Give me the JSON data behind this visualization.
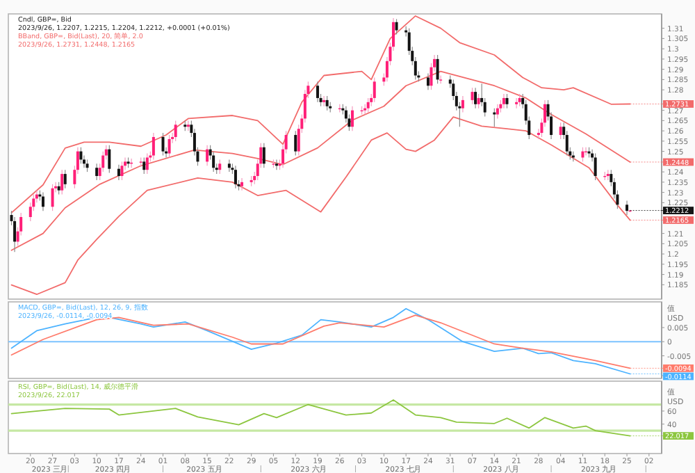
{
  "chart_data": [
    {
      "type": "candlestick",
      "title": "Cndl, GBP=, Bid",
      "subtitle": "2023/9/26, 1.2207, 1.2215, 1.2204, 1.2212, +0.0001 (+0.01%)",
      "legend_title": "BBand, GBP=, Bid(Last), 20, 简单, 2.0",
      "annotations": [
        "2023/9/26, 1.2731, 1.2448, 1.2165"
      ],
      "value_labels": [
        null,
        null,
        null,
        null,
        null,
        null,
        null,
        null,
        null,
        null,
        null,
        null,
        null,
        null,
        null,
        null,
        null,
        null,
        null,
        null,
        null,
        null,
        null,
        null,
        null,
        null,
        null,
        null,
        null,
        null,
        null,
        null,
        null,
        null,
        null,
        null,
        null,
        null,
        null,
        null,
        null,
        null,
        null,
        null,
        null,
        null,
        null,
        null,
        null,
        null,
        null,
        null,
        null,
        null,
        null,
        null,
        null,
        null,
        null,
        null,
        null,
        null,
        null,
        null,
        null,
        null,
        null,
        null,
        null,
        null,
        null,
        null,
        null,
        null,
        null,
        null,
        null,
        null,
        null,
        null,
        null,
        null,
        null,
        null,
        null,
        null,
        null,
        null,
        null,
        null,
        null,
        null,
        null,
        null,
        null,
        null,
        null,
        null,
        null,
        null,
        null,
        null,
        null,
        null,
        null,
        null,
        null,
        null,
        null,
        null,
        null,
        null,
        null,
        null,
        null,
        null,
        null,
        null,
        null,
        null,
        null,
        null,
        null,
        null,
        null,
        null,
        null,
        null,
        null,
        null,
        null,
        null,
        null,
        null,
        null,
        null,
        null,
        null,
        null,
        null,
        "1.2212"
      ],
      "x": [
        "2023-03-14",
        "2023-03-15",
        "2023-03-16",
        "2023-03-17",
        "2023-03-20",
        "2023-03-21",
        "2023-03-22",
        "2023-03-23",
        "2023-03-24",
        "2023-03-27",
        "2023-03-28",
        "2023-03-29",
        "2023-03-30",
        "2023-03-31",
        "2023-04-03",
        "2023-04-04",
        "2023-04-05",
        "2023-04-06",
        "2023-04-07",
        "2023-04-10",
        "2023-04-11",
        "2023-04-12",
        "2023-04-13",
        "2023-04-14",
        "2023-04-17",
        "2023-04-18",
        "2023-04-19",
        "2023-04-20",
        "2023-04-21",
        "2023-04-24",
        "2023-04-25",
        "2023-04-26",
        "2023-04-27",
        "2023-04-28",
        "2023-05-01",
        "2023-05-02",
        "2023-05-03",
        "2023-05-04",
        "2023-05-05",
        "2023-05-08",
        "2023-05-09",
        "2023-05-10",
        "2023-05-11",
        "2023-05-12",
        "2023-05-15",
        "2023-05-16",
        "2023-05-17",
        "2023-05-18",
        "2023-05-19",
        "2023-05-22",
        "2023-05-23",
        "2023-05-24",
        "2023-05-25",
        "2023-05-26",
        "2023-05-29",
        "2023-05-30",
        "2023-05-31",
        "2023-06-01",
        "2023-06-02",
        "2023-06-05",
        "2023-06-06",
        "2023-06-07",
        "2023-06-08",
        "2023-06-09",
        "2023-06-12",
        "2023-06-13",
        "2023-06-14",
        "2023-06-15",
        "2023-06-16",
        "2023-06-19",
        "2023-06-20",
        "2023-06-21",
        "2023-06-22",
        "2023-06-23",
        "2023-06-26",
        "2023-06-27",
        "2023-06-28",
        "2023-06-29",
        "2023-06-30",
        "2023-07-03",
        "2023-07-04",
        "2023-07-05",
        "2023-07-06",
        "2023-07-07",
        "2023-07-10",
        "2023-07-11",
        "2023-07-12",
        "2023-07-13",
        "2023-07-14",
        "2023-07-17",
        "2023-07-18",
        "2023-07-19",
        "2023-07-20",
        "2023-07-21",
        "2023-07-24",
        "2023-07-25",
        "2023-07-26",
        "2023-07-27",
        "2023-07-28",
        "2023-07-31",
        "2023-08-01",
        "2023-08-02",
        "2023-08-03",
        "2023-08-04",
        "2023-08-07",
        "2023-08-08",
        "2023-08-09",
        "2023-08-10",
        "2023-08-11",
        "2023-08-14",
        "2023-08-15",
        "2023-08-16",
        "2023-08-17",
        "2023-08-18",
        "2023-08-21",
        "2023-08-22",
        "2023-08-23",
        "2023-08-24",
        "2023-08-25",
        "2023-08-28",
        "2023-08-29",
        "2023-08-30",
        "2023-08-31",
        "2023-09-01",
        "2023-09-04",
        "2023-09-05",
        "2023-09-06",
        "2023-09-07",
        "2023-09-08",
        "2023-09-11",
        "2023-09-12",
        "2023-09-13",
        "2023-09-14",
        "2023-09-15",
        "2023-09-18",
        "2023-09-19",
        "2023-09-20",
        "2023-09-21",
        "2023-09-22",
        "2023-09-25",
        "2023-09-26"
      ],
      "ohlc": [
        [
          1.219,
          1.221,
          1.214,
          1.216
        ],
        [
          1.216,
          1.218,
          1.201,
          1.206
        ],
        [
          1.206,
          1.213,
          1.204,
          1.211
        ],
        [
          1.211,
          1.22,
          1.209,
          1.218
        ],
        [
          1.218,
          1.225,
          1.216,
          1.223
        ],
        [
          1.223,
          1.229,
          1.221,
          1.227
        ],
        [
          1.227,
          1.231,
          1.225,
          1.229
        ],
        [
          1.229,
          1.231,
          1.226,
          1.228
        ],
        [
          1.228,
          1.23,
          1.221,
          1.223
        ],
        [
          1.223,
          1.234,
          1.221,
          1.232
        ],
        [
          1.232,
          1.235,
          1.23,
          1.233
        ],
        [
          1.233,
          1.235,
          1.229,
          1.231
        ],
        [
          1.231,
          1.241,
          1.229,
          1.239
        ],
        [
          1.239,
          1.241,
          1.232,
          1.234
        ],
        [
          1.234,
          1.243,
          1.232,
          1.241
        ],
        [
          1.241,
          1.252,
          1.239,
          1.25
        ],
        [
          1.25,
          1.252,
          1.244,
          1.246
        ],
        [
          1.246,
          1.248,
          1.242,
          1.244
        ],
        [
          1.244,
          1.246,
          1.24,
          1.242
        ],
        [
          1.242,
          1.244,
          1.236,
          1.238
        ],
        [
          1.238,
          1.244,
          1.236,
          1.242
        ],
        [
          1.242,
          1.25,
          1.24,
          1.248
        ],
        [
          1.248,
          1.253,
          1.246,
          1.251
        ],
        [
          1.251,
          1.253,
          1.2395,
          1.2415
        ],
        [
          1.2415,
          1.2435,
          1.236,
          1.238
        ],
        [
          1.238,
          1.245,
          1.236,
          1.243
        ],
        [
          1.243,
          1.247,
          1.241,
          1.245
        ],
        [
          1.245,
          1.247,
          1.242,
          1.244
        ],
        [
          1.244,
          1.2465,
          1.242,
          1.2445
        ],
        [
          1.2445,
          1.247,
          1.2425,
          1.245
        ],
        [
          1.245,
          1.247,
          1.239,
          1.241
        ],
        [
          1.241,
          1.249,
          1.239,
          1.247
        ],
        [
          1.247,
          1.25,
          1.245,
          1.248
        ],
        [
          1.248,
          1.259,
          1.246,
          1.257
        ],
        [
          1.257,
          1.259,
          1.248,
          1.25
        ],
        [
          1.25,
          1.252,
          1.247,
          1.249
        ],
        [
          1.249,
          1.258,
          1.247,
          1.256
        ],
        [
          1.256,
          1.259,
          1.254,
          1.257
        ],
        [
          1.257,
          1.265,
          1.255,
          1.263
        ],
        [
          1.263,
          1.265,
          1.26,
          1.262
        ],
        [
          1.262,
          1.265,
          1.26,
          1.263
        ],
        [
          1.263,
          1.265,
          1.257,
          1.259
        ],
        [
          1.259,
          1.261,
          1.248,
          1.25
        ],
        [
          1.25,
          1.252,
          1.243,
          1.245
        ],
        [
          1.245,
          1.253,
          1.243,
          1.251
        ],
        [
          1.251,
          1.253,
          1.246,
          1.248
        ],
        [
          1.248,
          1.25,
          1.24,
          1.242
        ],
        [
          1.242,
          1.244,
          1.239,
          1.241
        ],
        [
          1.241,
          1.246,
          1.239,
          1.244
        ],
        [
          1.244,
          1.246,
          1.24,
          1.242
        ],
        [
          1.242,
          1.244,
          1.239,
          1.241
        ],
        [
          1.241,
          1.243,
          1.232,
          1.234
        ],
        [
          1.234,
          1.236,
          1.231,
          1.233
        ],
        [
          1.233,
          1.237,
          1.231,
          1.235
        ],
        [
          1.235,
          1.238,
          1.233,
          1.236
        ],
        [
          1.236,
          1.24,
          1.234,
          1.238
        ],
        [
          1.238,
          1.246,
          1.236,
          1.244
        ],
        [
          1.244,
          1.254,
          1.242,
          1.252
        ],
        [
          1.252,
          1.254,
          1.242,
          1.244
        ],
        [
          1.244,
          1.246,
          1.242,
          1.244
        ],
        [
          1.244,
          1.246,
          1.241,
          1.243
        ],
        [
          1.243,
          1.246,
          1.241,
          1.244
        ],
        [
          1.244,
          1.253,
          1.242,
          1.251
        ],
        [
          1.251,
          1.26,
          1.249,
          1.258
        ],
        [
          1.258,
          1.26,
          1.248,
          1.25
        ],
        [
          1.25,
          1.263,
          1.248,
          1.261
        ],
        [
          1.261,
          1.268,
          1.259,
          1.266
        ],
        [
          1.266,
          1.28,
          1.264,
          1.278
        ],
        [
          1.278,
          1.284,
          1.276,
          1.282
        ],
        [
          1.282,
          1.284,
          1.274,
          1.276
        ],
        [
          1.276,
          1.278,
          1.272,
          1.274
        ],
        [
          1.274,
          1.277,
          1.272,
          1.275
        ],
        [
          1.275,
          1.277,
          1.27,
          1.272
        ],
        [
          1.272,
          1.274,
          1.269,
          1.271
        ],
        [
          1.271,
          1.273,
          1.269,
          1.271
        ],
        [
          1.271,
          1.273,
          1.268,
          1.27
        ],
        [
          1.27,
          1.272,
          1.264,
          1.266
        ],
        [
          1.266,
          1.268,
          1.26,
          1.262
        ],
        [
          1.262,
          1.272,
          1.26,
          1.27
        ],
        [
          1.27,
          1.272,
          1.268,
          1.27
        ],
        [
          1.27,
          1.273,
          1.268,
          1.271
        ],
        [
          1.271,
          1.276,
          1.269,
          1.274
        ],
        [
          1.274,
          1.278,
          1.272,
          1.276
        ],
        [
          1.276,
          1.286,
          1.274,
          1.284
        ],
        [
          1.284,
          1.288,
          1.282,
          1.286
        ],
        [
          1.286,
          1.296,
          1.284,
          1.294
        ],
        [
          1.294,
          1.303,
          1.292,
          1.301
        ],
        [
          1.301,
          1.315,
          1.299,
          1.313
        ],
        [
          1.313,
          1.3145,
          1.307,
          1.309
        ],
        [
          1.309,
          1.311,
          1.306,
          1.308
        ],
        [
          1.308,
          1.31,
          1.297,
          1.299
        ],
        [
          1.299,
          1.301,
          1.292,
          1.294
        ],
        [
          1.294,
          1.296,
          1.285,
          1.287
        ],
        [
          1.287,
          1.289,
          1.284,
          1.286
        ],
        [
          1.286,
          1.288,
          1.28,
          1.282
        ],
        [
          1.282,
          1.293,
          1.28,
          1.291
        ],
        [
          1.291,
          1.297,
          1.289,
          1.295
        ],
        [
          1.295,
          1.297,
          1.283,
          1.285
        ],
        [
          1.285,
          1.287,
          1.283,
          1.285
        ],
        [
          1.285,
          1.287,
          1.281,
          1.283
        ],
        [
          1.283,
          1.285,
          1.275,
          1.277
        ],
        [
          1.277,
          1.279,
          1.27,
          1.272
        ],
        [
          1.272,
          1.274,
          1.262,
          1.271
        ],
        [
          1.271,
          1.277,
          1.269,
          1.275
        ],
        [
          1.275,
          1.281,
          1.273,
          1.279
        ],
        [
          1.279,
          1.281,
          1.271,
          1.273
        ],
        [
          1.273,
          1.278,
          1.271,
          1.276
        ],
        [
          1.276,
          1.283,
          1.272,
          1.274
        ],
        [
          1.274,
          1.276,
          1.267,
          1.269
        ],
        [
          1.269,
          1.271,
          1.262,
          1.268
        ],
        [
          1.268,
          1.273,
          1.266,
          1.271
        ],
        [
          1.271,
          1.275,
          1.269,
          1.273
        ],
        [
          1.273,
          1.278,
          1.271,
          1.276
        ],
        [
          1.276,
          1.278,
          1.271,
          1.273
        ],
        [
          1.273,
          1.276,
          1.271,
          1.274
        ],
        [
          1.274,
          1.278,
          1.272,
          1.276
        ],
        [
          1.276,
          1.278,
          1.271,
          1.273
        ],
        [
          1.273,
          1.275,
          1.263,
          1.265
        ],
        [
          1.265,
          1.267,
          1.256,
          1.258
        ],
        [
          1.258,
          1.261,
          1.256,
          1.259
        ],
        [
          1.259,
          1.266,
          1.257,
          1.264
        ],
        [
          1.264,
          1.275,
          1.262,
          1.273
        ],
        [
          1.273,
          1.275,
          1.265,
          1.267
        ],
        [
          1.267,
          1.269,
          1.256,
          1.258
        ],
        [
          1.258,
          1.264,
          1.256,
          1.262
        ],
        [
          1.262,
          1.264,
          1.256,
          1.258
        ],
        [
          1.258,
          1.26,
          1.248,
          1.25
        ],
        [
          1.25,
          1.252,
          1.246,
          1.248
        ],
        [
          1.248,
          1.25,
          1.245,
          1.247
        ],
        [
          1.247,
          1.252,
          1.245,
          1.25
        ],
        [
          1.25,
          1.252,
          1.248,
          1.25
        ],
        [
          1.25,
          1.252,
          1.247,
          1.249
        ],
        [
          1.249,
          1.251,
          1.245,
          1.247
        ],
        [
          1.247,
          1.249,
          1.236,
          1.238
        ],
        [
          1.238,
          1.24,
          1.236,
          1.238
        ],
        [
          1.238,
          1.241,
          1.236,
          1.239
        ],
        [
          1.239,
          1.241,
          1.233,
          1.235
        ],
        [
          1.235,
          1.237,
          1.227,
          1.229
        ],
        [
          1.229,
          1.231,
          1.222,
          1.224
        ],
        [
          1.224,
          1.226,
          1.219,
          1.221
        ],
        [
          1.2207,
          1.2215,
          1.2204,
          1.2212
        ]
      ],
      "series": [
        {
          "type": "line",
          "color": "#f26b6b",
          "x": [
            "2023-03-14",
            "2023-03-24",
            "2023-03-31",
            "2023-04-06",
            "2023-04-14",
            "2023-04-24",
            "2023-05-02",
            "2023-05-09",
            "2023-05-23",
            "2023-05-31",
            "2023-06-08",
            "2023-06-14",
            "2023-06-21",
            "2023-07-03",
            "2023-07-06",
            "2023-07-12",
            "2023-07-20",
            "2023-07-28",
            "2023-08-03",
            "2023-08-14",
            "2023-08-23",
            "2023-08-29",
            "2023-09-05",
            "2023-09-08",
            "2023-09-20",
            "2023-09-26"
          ],
          "values": [
            1.2201,
            1.2337,
            1.2516,
            1.2545,
            1.2545,
            1.2525,
            1.258,
            1.266,
            1.2675,
            1.265,
            1.2535,
            1.274,
            1.287,
            1.289,
            1.285,
            1.305,
            1.316,
            1.31,
            1.303,
            1.297,
            1.286,
            1.281,
            1.28,
            1.281,
            1.273,
            1.2731
          ],
          "value_labels": [
            null,
            null,
            null,
            null,
            null,
            null,
            null,
            null,
            null,
            null,
            null,
            null,
            null,
            null,
            null,
            null,
            null,
            null,
            null,
            null,
            null,
            null,
            null,
            null,
            null,
            "1.2731"
          ]
        },
        {
          "type": "line",
          "color": "#f26b6b",
          "x": [
            "2023-03-14",
            "2023-03-24",
            "2023-03-31",
            "2023-04-11",
            "2023-04-24",
            "2023-05-11",
            "2023-05-23",
            "2023-05-31",
            "2023-06-08",
            "2023-06-19",
            "2023-06-30",
            "2023-07-10",
            "2023-07-17",
            "2023-07-28",
            "2023-08-14",
            "2023-08-24",
            "2023-09-01",
            "2023-09-12",
            "2023-09-26"
          ],
          "values": [
            1.2018,
            1.21,
            1.2225,
            1.234,
            1.243,
            1.2507,
            1.249,
            1.2465,
            1.2436,
            1.2517,
            1.2652,
            1.272,
            1.282,
            1.289,
            1.282,
            1.276,
            1.268,
            1.2585,
            1.2448
          ],
          "value_labels": [
            null,
            null,
            null,
            null,
            null,
            null,
            null,
            null,
            null,
            null,
            null,
            null,
            null,
            null,
            null,
            null,
            null,
            null,
            "1.2448"
          ]
        },
        {
          "type": "line",
          "color": "#f26b6b",
          "x": [
            "2023-03-14",
            "2023-03-22",
            "2023-03-31",
            "2023-04-04",
            "2023-04-10",
            "2023-04-17",
            "2023-04-26",
            "2023-05-12",
            "2023-05-23",
            "2023-05-31",
            "2023-06-09",
            "2023-06-20",
            "2023-06-28",
            "2023-07-06",
            "2023-07-11",
            "2023-07-17",
            "2023-07-20",
            "2023-07-26",
            "2023-08-01",
            "2023-08-10",
            "2023-08-18",
            "2023-08-24",
            "2023-09-01",
            "2023-09-13",
            "2023-09-22",
            "2023-09-26"
          ],
          "values": [
            1.1849,
            1.1803,
            1.186,
            1.197,
            1.2071,
            1.2183,
            1.231,
            1.237,
            1.235,
            1.2285,
            1.231,
            1.2205,
            1.2375,
            1.2555,
            1.259,
            1.251,
            1.25,
            1.2555,
            1.2668,
            1.2623,
            1.261,
            1.26,
            1.2532,
            1.242,
            1.2238,
            1.2165
          ],
          "value_labels": [
            null,
            null,
            null,
            null,
            null,
            null,
            null,
            null,
            null,
            null,
            null,
            null,
            null,
            null,
            null,
            null,
            null,
            null,
            null,
            null,
            null,
            null,
            null,
            null,
            null,
            "1.2165"
          ]
        }
      ],
      "xlim": [
        "2023-03-13",
        "2023-10-06"
      ],
      "ylim": [
        1.178,
        1.317
      ],
      "yticks": [
        1.185,
        1.19,
        1.195,
        1.2,
        1.205,
        1.21,
        1.225,
        1.23,
        1.235,
        1.24,
        1.25,
        1.255,
        1.26,
        1.265,
        1.27,
        1.28,
        1.285,
        1.29,
        1.295,
        1.3,
        1.305,
        1.31
      ],
      "tick_labels": "y"
    },
    {
      "type": "line",
      "title": "MACD, GBP=, Bid(Last), 12, 26, 9, 指数",
      "subtitle": "2023/9/26, -0.0114, -0.0094",
      "ylabel": "值\nUSD",
      "series": [
        {
          "color": "#4db3ff",
          "x": [
            "2023-03-14",
            "2023-03-22",
            "2023-03-31",
            "2023-04-10",
            "2023-04-14",
            "2023-04-24",
            "2023-04-28",
            "2023-05-08",
            "2023-05-15",
            "2023-05-29",
            "2023-06-06",
            "2023-06-14",
            "2023-06-20",
            "2023-06-26",
            "2023-07-06",
            "2023-07-13",
            "2023-07-17",
            "2023-07-24",
            "2023-08-04",
            "2023-08-14",
            "2023-08-23",
            "2023-08-28",
            "2023-09-01",
            "2023-09-08",
            "2023-09-15",
            "2023-09-26"
          ],
          "values": [
            -0.0023,
            0.0039,
            0.0063,
            0.0086,
            0.0086,
            0.0063,
            0.0052,
            0.007,
            0.0039,
            -0.0027,
            -0.0005,
            0.0023,
            0.0078,
            0.007,
            0.0052,
            0.0086,
            0.0117,
            0.0078,
            0,
            -0.0034,
            -0.0023,
            -0.0042,
            -0.0039,
            -0.0067,
            -0.0078,
            -0.0114
          ],
          "value_labels": [
            null,
            null,
            null,
            null,
            null,
            null,
            null,
            null,
            null,
            null,
            null,
            null,
            null,
            null,
            null,
            null,
            null,
            null,
            null,
            null,
            null,
            null,
            null,
            null,
            null,
            "-0.0114"
          ]
        },
        {
          "color": "#ff7b6b",
          "x": [
            "2023-03-14",
            "2023-03-24",
            "2023-04-10",
            "2023-04-17",
            "2023-04-28",
            "2023-05-09",
            "2023-05-23",
            "2023-05-29",
            "2023-06-08",
            "2023-06-21",
            "2023-06-26",
            "2023-07-10",
            "2023-07-20",
            "2023-07-28",
            "2023-08-14",
            "2023-08-23",
            "2023-09-01",
            "2023-09-15",
            "2023-09-26"
          ],
          "values": [
            -0.0047,
            0.0008,
            0.0078,
            0.0086,
            0.0058,
            0.0063,
            0.0016,
            -0.0008,
            -0.0008,
            0.0055,
            0.0067,
            0.0052,
            0.0094,
            0.0067,
            -0.0008,
            -0.0023,
            -0.0036,
            -0.0067,
            -0.0094
          ],
          "value_labels": [
            null,
            null,
            null,
            null,
            null,
            null,
            null,
            null,
            null,
            null,
            null,
            null,
            null,
            null,
            null,
            null,
            null,
            null,
            "-0.0094"
          ]
        }
      ],
      "ref_lines": [
        {
          "axis": "y",
          "value": 0,
          "color": "#7cc3ff"
        }
      ],
      "xlim": [
        "2023-03-13",
        "2023-10-06"
      ],
      "ylim": [
        -0.013,
        0.0141
      ],
      "yticks": [
        -0.005,
        0,
        0.005
      ],
      "tick_labels": "y"
    },
    {
      "type": "line",
      "title": "RSI, GBP=, Bid(Last), 14, 威尔德平滑",
      "subtitle": "2023/9/26, 22.017",
      "ylabel": "值\nUSD",
      "series": [
        {
          "color": "#8cc63f",
          "x": [
            "2023-03-14",
            "2023-03-20",
            "2023-03-31",
            "2023-04-14",
            "2023-04-17",
            "2023-05-05",
            "2023-05-12",
            "2023-05-25",
            "2023-06-02",
            "2023-06-06",
            "2023-06-16",
            "2023-06-28",
            "2023-07-06",
            "2023-07-13",
            "2023-07-20",
            "2023-07-28",
            "2023-08-02",
            "2023-08-14",
            "2023-08-18",
            "2023-08-25",
            "2023-08-30",
            "2023-09-08",
            "2023-09-12",
            "2023-09-15",
            "2023-09-26"
          ],
          "values": [
            56,
            59,
            64,
            63,
            54,
            64,
            51,
            39,
            56,
            50,
            70,
            54,
            57,
            77,
            54,
            50,
            43,
            41,
            49,
            34,
            50,
            34,
            37,
            30,
            22.017
          ],
          "value_labels": [
            null,
            null,
            null,
            null,
            null,
            null,
            null,
            null,
            null,
            null,
            null,
            null,
            null,
            null,
            null,
            null,
            null,
            null,
            null,
            null,
            null,
            null,
            null,
            null,
            "22.017"
          ]
        }
      ],
      "ref_lines": [
        {
          "axis": "y",
          "value": 70,
          "color": "#c6e8a4"
        },
        {
          "axis": "y",
          "value": 30,
          "color": "#c6e8a4"
        }
      ],
      "xlim": [
        "2023-03-13",
        "2023-10-06"
      ],
      "ylim": [
        -5,
        105.7
      ],
      "yticks": [
        40,
        60
      ],
      "xticks": [
        {
          "value": "2023-03-20",
          "label": "20"
        },
        {
          "value": "2023-03-27",
          "label": "27"
        },
        {
          "value": "2023-04-03",
          "label": "03"
        },
        {
          "value": "2023-04-10",
          "label": "10"
        },
        {
          "value": "2023-04-17",
          "label": "17"
        },
        {
          "value": "2023-04-24",
          "label": "24"
        },
        {
          "value": "2023-05-01",
          "label": "01"
        },
        {
          "value": "2023-05-08",
          "label": "08"
        },
        {
          "value": "2023-05-15",
          "label": "15"
        },
        {
          "value": "2023-05-22",
          "label": "22"
        },
        {
          "value": "2023-05-29",
          "label": "29"
        },
        {
          "value": "2023-06-05",
          "label": "05"
        },
        {
          "value": "2023-06-12",
          "label": "12"
        },
        {
          "value": "2023-06-19",
          "label": "19"
        },
        {
          "value": "2023-06-26",
          "label": "26"
        },
        {
          "value": "2023-07-03",
          "label": "03"
        },
        {
          "value": "2023-07-10",
          "label": "10"
        },
        {
          "value": "2023-07-17",
          "label": "17"
        },
        {
          "value": "2023-07-24",
          "label": "24"
        },
        {
          "value": "2023-07-31",
          "label": "31"
        },
        {
          "value": "2023-08-07",
          "label": "07"
        },
        {
          "value": "2023-08-14",
          "label": "14"
        },
        {
          "value": "2023-08-21",
          "label": "21"
        },
        {
          "value": "2023-08-28",
          "label": "28"
        },
        {
          "value": "2023-09-04",
          "label": "04"
        },
        {
          "value": "2023-09-11",
          "label": "11"
        },
        {
          "value": "2023-09-18",
          "label": "18"
        },
        {
          "value": "2023-09-25",
          "label": "25"
        },
        {
          "value": "2023-10-02",
          "label": "02"
        }
      ],
      "x2lim": [
        "2023-03-13",
        "2023-10-06"
      ],
      "x2ticks": [
        {
          "value": "2023-03-26",
          "label": "2023 三月"
        },
        {
          "value": "2023-04-15",
          "label": "2023 四月"
        },
        {
          "value": "2023-05-14",
          "label": "2023 五月"
        },
        {
          "value": "2023-06-16",
          "label": "2023 六月"
        },
        {
          "value": "2023-07-16",
          "label": "2023 七月"
        },
        {
          "value": "2023-08-16",
          "label": "2023 八月"
        },
        {
          "value": "2023-09-16",
          "label": "2023 九月"
        }
      ]
    }
  ]
}
